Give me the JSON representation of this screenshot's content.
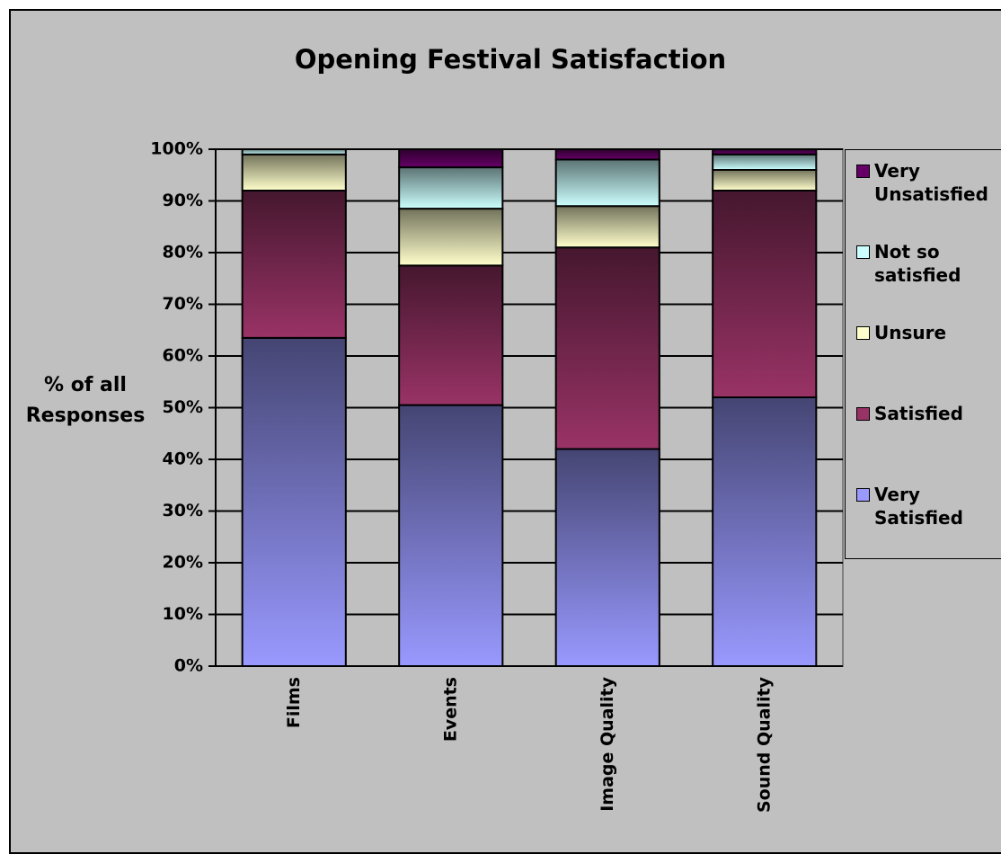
{
  "chart_data": {
    "type": "stacked_bar",
    "title": "Opening Festival Satisfaction",
    "y_label": "% of all Responses",
    "categories": [
      "Films",
      "Events",
      "Image Quality",
      "Sound Quality"
    ],
    "series": [
      {
        "name": "Very Satisfied",
        "color": "#9999ff",
        "values": [
          63.5,
          50.5,
          42,
          52
        ]
      },
      {
        "name": "Satisfied",
        "color": "#993366",
        "values": [
          28.5,
          27,
          39,
          40
        ]
      },
      {
        "name": "Unsure",
        "color": "#ffffcc",
        "values": [
          7,
          11,
          8,
          4
        ]
      },
      {
        "name": "Not so satisfied",
        "color": "#ccffff",
        "values": [
          1,
          8,
          9,
          3
        ]
      },
      {
        "name": "Very Unsatisfied",
        "color": "#660066",
        "values": [
          0,
          3.5,
          2,
          1
        ]
      }
    ],
    "ylim": [
      0,
      100
    ],
    "yticks": [
      {
        "value": 0,
        "label": "0%"
      },
      {
        "value": 10,
        "label": "10%"
      },
      {
        "value": 20,
        "label": "20%"
      },
      {
        "value": 30,
        "label": "30%"
      },
      {
        "value": 40,
        "label": "40%"
      },
      {
        "value": 50,
        "label": "50%"
      },
      {
        "value": 60,
        "label": "60%"
      },
      {
        "value": 70,
        "label": "70%"
      },
      {
        "value": 80,
        "label": "80%"
      },
      {
        "value": 90,
        "label": "90%"
      },
      {
        "value": 100,
        "label": "100%"
      }
    ],
    "grid": true,
    "legend": "right"
  }
}
